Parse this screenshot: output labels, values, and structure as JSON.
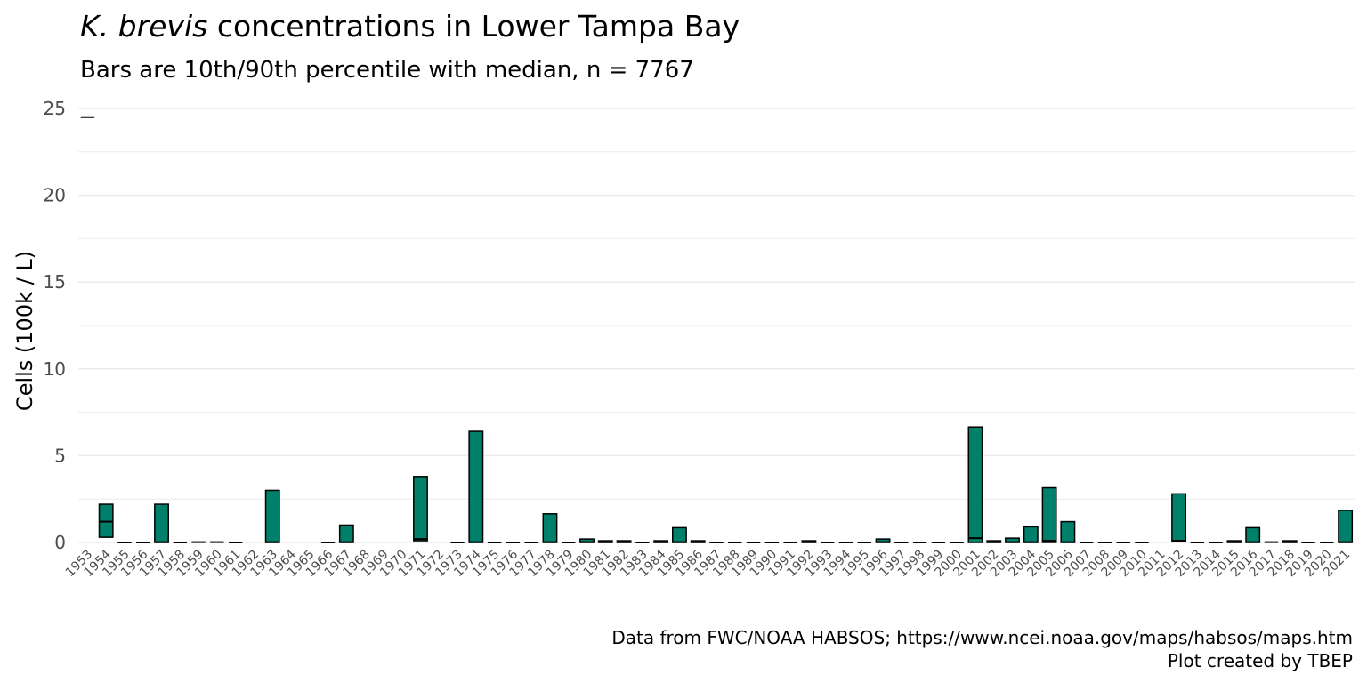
{
  "title": {
    "italic": "K. brevis",
    "rest": " concentrations in Lower Tampa Bay"
  },
  "subtitle": "Bars are 10th/90th percentile with median, n = 7767",
  "caption": {
    "line1": "Data from FWC/NOAA HABSOS; https://www.ncei.noaa.gov/maps/habsos/maps.htm",
    "line2": "Plot created by TBEP"
  },
  "colors": {
    "bar_fill": "#00806A",
    "bar_stroke": "#000000",
    "grid": "#ebebeb",
    "tick_text": "#4d4d4d"
  },
  "chart_data": {
    "type": "bar",
    "title": "K. brevis concentrations in Lower Tampa Bay",
    "subtitle": "Bars are 10th/90th percentile with median, n = 7767",
    "ylabel": "Cells (100k / L)",
    "xlabel": "",
    "ylim": [
      0,
      25
    ],
    "yticks": [
      0,
      5,
      10,
      15,
      20,
      25
    ],
    "grid": true,
    "categories": [
      "1953",
      "1954",
      "1955",
      "1956",
      "1957",
      "1958",
      "1959",
      "1960",
      "1961",
      "1962",
      "1963",
      "1964",
      "1965",
      "1966",
      "1967",
      "1968",
      "1969",
      "1970",
      "1971",
      "1972",
      "1973",
      "1974",
      "1975",
      "1976",
      "1977",
      "1978",
      "1979",
      "1980",
      "1981",
      "1982",
      "1983",
      "1984",
      "1985",
      "1986",
      "1987",
      "1988",
      "1989",
      "1990",
      "1991",
      "1992",
      "1993",
      "1994",
      "1995",
      "1996",
      "1997",
      "1998",
      "1999",
      "2000",
      "2001",
      "2002",
      "2003",
      "2004",
      "2005",
      "2006",
      "2007",
      "2008",
      "2009",
      "2010",
      "2011",
      "2012",
      "2013",
      "2014",
      "2015",
      "2016",
      "2017",
      "2018",
      "2019",
      "2020",
      "2021"
    ],
    "p10": [
      24.5,
      0.3,
      0,
      0,
      0,
      0,
      0,
      0,
      0,
      null,
      0,
      null,
      null,
      0,
      0,
      null,
      null,
      null,
      0.1,
      null,
      0,
      0,
      0,
      0,
      0,
      0,
      0,
      0,
      0,
      0,
      0,
      0,
      0,
      0,
      0,
      0,
      0,
      0,
      0,
      0,
      0,
      0,
      0,
      0,
      0,
      0,
      0,
      0,
      0,
      0,
      0,
      0,
      0,
      0,
      0,
      0,
      0,
      0,
      null,
      0.05,
      0,
      0,
      0,
      0,
      0,
      0,
      0,
      0,
      0
    ],
    "median": [
      24.5,
      1.2,
      0,
      0,
      0.02,
      0,
      0.02,
      0.02,
      0,
      null,
      0.02,
      null,
      null,
      0,
      0.02,
      null,
      null,
      null,
      0.2,
      null,
      0,
      0.02,
      0,
      0,
      0,
      0.02,
      0,
      0.02,
      0.02,
      0.02,
      0,
      0.02,
      0.02,
      0.02,
      0,
      0,
      0,
      0,
      0,
      0.02,
      0,
      0,
      0,
      0.02,
      0,
      0,
      0,
      0,
      0.25,
      0.02,
      0.02,
      0.02,
      0.1,
      0.02,
      0,
      0,
      0,
      0,
      null,
      0.1,
      0,
      0,
      0.02,
      0.02,
      0.02,
      0.02,
      0,
      0,
      0.02
    ],
    "p90": [
      24.5,
      2.2,
      0,
      0,
      2.2,
      0,
      0.05,
      0.05,
      0,
      null,
      3.0,
      null,
      null,
      0,
      1.0,
      null,
      null,
      null,
      3.8,
      null,
      0,
      6.4,
      0,
      0,
      0,
      1.65,
      0,
      0.2,
      0.1,
      0.1,
      0,
      0.1,
      0.85,
      0.1,
      0,
      0,
      0,
      0,
      0,
      0.1,
      0,
      0.05,
      0.05,
      0.2,
      0,
      0,
      0,
      0,
      6.65,
      0.1,
      0.25,
      0.9,
      3.15,
      1.2,
      0,
      0,
      0,
      0,
      null,
      2.8,
      0,
      0,
      0.1,
      0.85,
      0.05,
      0.1,
      0,
      0,
      1.85
    ]
  }
}
